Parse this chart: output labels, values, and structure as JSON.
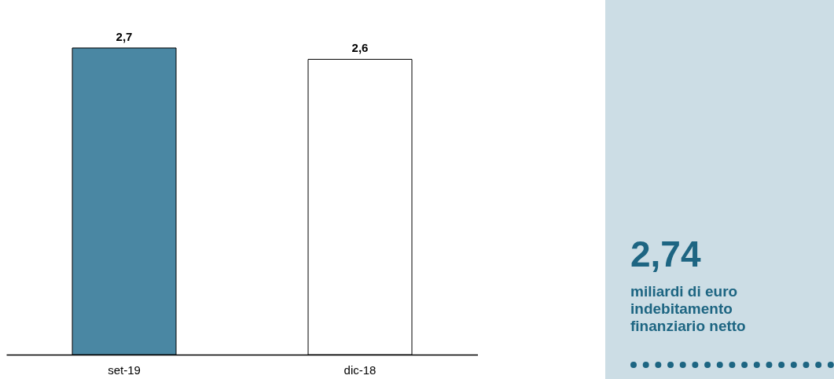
{
  "chart_data": {
    "type": "bar",
    "categories": [
      "set-19",
      "dic-18"
    ],
    "values": [
      2.7,
      2.6
    ],
    "value_labels": [
      "2,7",
      "2,6"
    ],
    "colors": [
      "#4a87a3",
      "#ffffff"
    ],
    "grid": false,
    "legend": false,
    "annotations": [
      "2,74",
      "miliardi di euro indebitamento finanziario netto"
    ]
  }
}
